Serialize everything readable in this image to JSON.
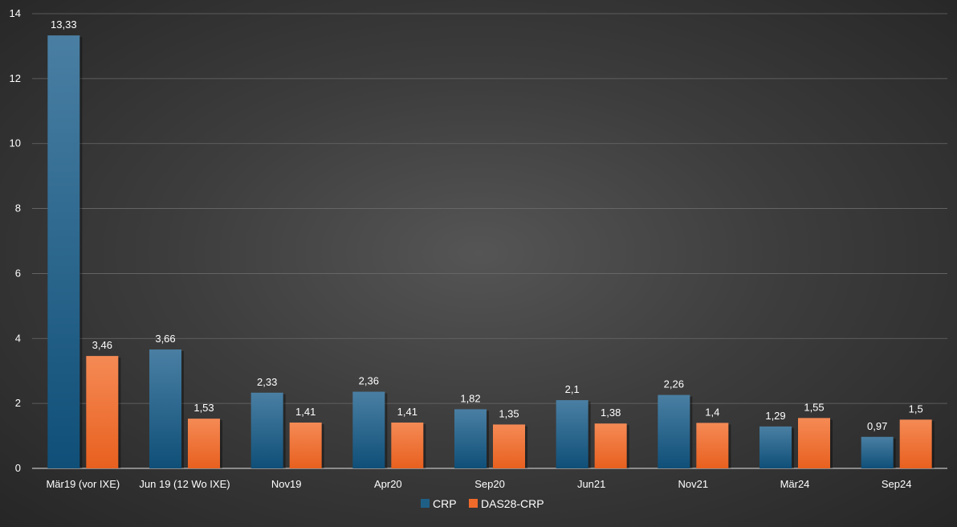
{
  "chart_data": {
    "type": "bar",
    "categories": [
      "Mär19 (vor IXE)",
      "Jun 19 (12 Wo IXE)",
      "Nov19",
      "Apr20",
      "Sep20",
      "Jun21",
      "Nov21",
      "Mär24",
      "Sep24"
    ],
    "series": [
      {
        "name": "CRP",
        "values": [
          13.33,
          3.66,
          2.33,
          2.36,
          1.82,
          2.1,
          2.26,
          1.29,
          0.97
        ],
        "labels": [
          "13,33",
          "3,66",
          "2,33",
          "2,36",
          "1,82",
          "2,1",
          "2,26",
          "1,29",
          "0,97"
        ],
        "color": "#1f5f86"
      },
      {
        "name": "DAS28-CRP",
        "values": [
          3.46,
          1.53,
          1.41,
          1.41,
          1.35,
          1.38,
          1.4,
          1.55,
          1.5
        ],
        "labels": [
          "3,46",
          "1,53",
          "1,41",
          "1,41",
          "1,35",
          "1,38",
          "1,4",
          "1,55",
          "1,5"
        ],
        "color": "#f06a2a"
      }
    ],
    "ylim": [
      0,
      14
    ],
    "yticks": [
      0,
      2,
      4,
      6,
      8,
      10,
      12,
      14
    ],
    "grid": true,
    "legend": "bottom",
    "title": "",
    "xlabel": "",
    "ylabel": ""
  }
}
